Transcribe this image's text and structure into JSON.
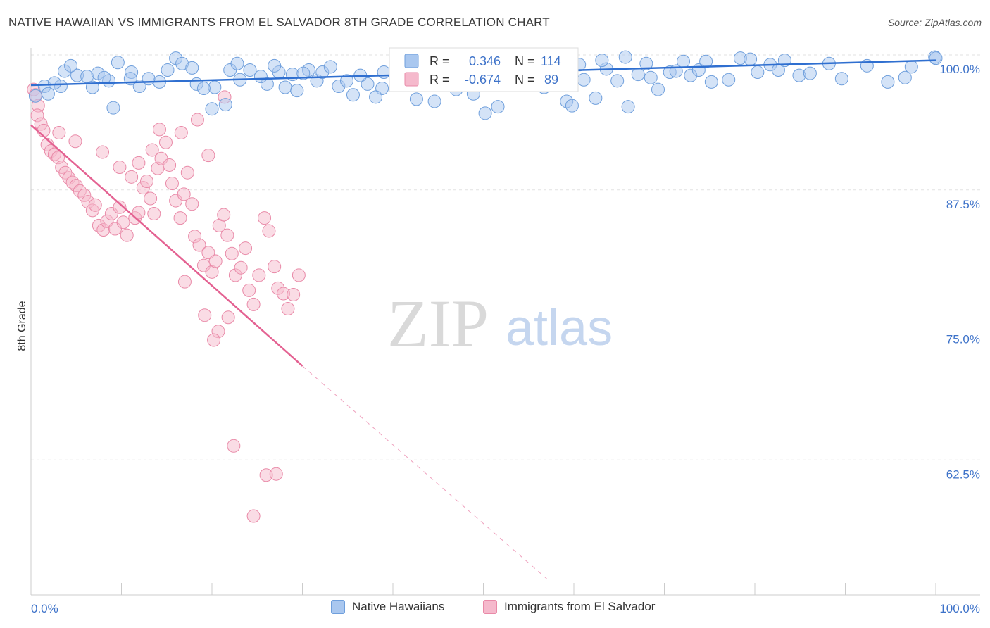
{
  "header": {
    "title": "NATIVE HAWAIIAN VS IMMIGRANTS FROM EL SALVADOR 8TH GRADE CORRELATION CHART",
    "source": "Source: ZipAtlas.com"
  },
  "watermark": {
    "zip": "ZIP",
    "atlas": "atlas"
  },
  "colors": {
    "blue_fill": "#a9c7ef",
    "blue_stroke": "#6f9fdc",
    "blue_line": "#2f6fd0",
    "pink_fill": "#f5b9cc",
    "pink_stroke": "#e98aa8",
    "pink_line": "#e46292",
    "label_blue": "#3d72c9"
  },
  "legend_box": {
    "rows": [
      {
        "r_label": "R =",
        "r_value": "0.346",
        "n_label": "N =",
        "n_value": "114"
      },
      {
        "r_label": "R =",
        "r_value": "-0.674",
        "n_label": "N =",
        "n_value": "89"
      }
    ]
  },
  "bottom_legend": {
    "series1": "Native Hawaiians",
    "series2": "Immigrants from El Salvador"
  },
  "chart_data": {
    "type": "scatter",
    "title": "NATIVE HAWAIIAN VS IMMIGRANTS FROM EL SALVADOR 8TH GRADE CORRELATION CHART",
    "xlabel": "",
    "ylabel": "8th Grade",
    "xlim": [
      0,
      100
    ],
    "ylim": [
      50,
      100
    ],
    "x_tick_labels": [
      "0.0%",
      "100.0%"
    ],
    "y_ticks": [
      {
        "value": 100,
        "label": "100.0%"
      },
      {
        "value": 87.5,
        "label": "87.5%"
      },
      {
        "value": 75,
        "label": "75.0%"
      },
      {
        "value": 62.5,
        "label": "62.5%"
      }
    ],
    "grid": true,
    "legend_position": "top-center",
    "series": [
      {
        "name": "Native Hawaiians",
        "R": 0.346,
        "N": 114,
        "trend": {
          "x": [
            0,
            100
          ],
          "y": [
            97.2,
            99.5
          ]
        },
        "points": [
          [
            0.5,
            96.2
          ],
          [
            1.5,
            97.1
          ],
          [
            1.9,
            96.4
          ],
          [
            3.7,
            98.5
          ],
          [
            5.1,
            98.1
          ],
          [
            3.3,
            97.1
          ],
          [
            6.8,
            97.0
          ],
          [
            6.2,
            98.0
          ],
          [
            8.6,
            97.6
          ],
          [
            7.4,
            98.3
          ],
          [
            8.1,
            97.9
          ],
          [
            11.1,
            98.4
          ],
          [
            12.0,
            97.1
          ],
          [
            9.1,
            95.1
          ],
          [
            14.2,
            97.5
          ],
          [
            15.1,
            98.6
          ],
          [
            16.0,
            99.7
          ],
          [
            11.0,
            97.8
          ],
          [
            18.3,
            97.3
          ],
          [
            16.7,
            99.2
          ],
          [
            17.8,
            98.8
          ],
          [
            20.0,
            95.0
          ],
          [
            20.3,
            97.0
          ],
          [
            21.5,
            95.4
          ],
          [
            22.0,
            98.6
          ],
          [
            23.1,
            97.7
          ],
          [
            24.2,
            98.6
          ],
          [
            26.1,
            97.3
          ],
          [
            25.4,
            98.0
          ],
          [
            27.4,
            98.4
          ],
          [
            28.1,
            97.0
          ],
          [
            28.9,
            98.2
          ],
          [
            30.7,
            98.6
          ],
          [
            30.1,
            98.3
          ],
          [
            31.6,
            97.6
          ],
          [
            32.2,
            98.4
          ],
          [
            34.0,
            97.1
          ],
          [
            35.6,
            96.3
          ],
          [
            34.9,
            97.6
          ],
          [
            37.2,
            97.3
          ],
          [
            38.8,
            96.9
          ],
          [
            39.0,
            98.4
          ],
          [
            40.4,
            97.4
          ],
          [
            41.8,
            98.1
          ],
          [
            42.6,
            95.9
          ],
          [
            43.1,
            97.4
          ],
          [
            44.6,
            95.7
          ],
          [
            45.4,
            98.7
          ],
          [
            46.5,
            97.6
          ],
          [
            47.0,
            96.8
          ],
          [
            48.9,
            96.4
          ],
          [
            49.8,
            97.2
          ],
          [
            50.2,
            94.6
          ],
          [
            51.6,
            95.2
          ],
          [
            53.5,
            97.7
          ],
          [
            54.1,
            98.9
          ],
          [
            55.3,
            98.8
          ],
          [
            56.7,
            97.0
          ],
          [
            57.9,
            98.4
          ],
          [
            59.2,
            95.7
          ],
          [
            59.8,
            95.3
          ],
          [
            61.1,
            97.7
          ],
          [
            62.4,
            96.0
          ],
          [
            63.6,
            98.7
          ],
          [
            64.8,
            97.6
          ],
          [
            66.0,
            95.2
          ],
          [
            67.1,
            98.2
          ],
          [
            68.5,
            97.9
          ],
          [
            69.3,
            96.8
          ],
          [
            70.6,
            98.4
          ],
          [
            71.3,
            98.5
          ],
          [
            72.9,
            98.1
          ],
          [
            73.8,
            98.6
          ],
          [
            75.2,
            97.5
          ],
          [
            77.1,
            97.7
          ],
          [
            78.4,
            99.7
          ],
          [
            80.3,
            98.4
          ],
          [
            81.7,
            99.1
          ],
          [
            82.6,
            98.6
          ],
          [
            84.9,
            98.1
          ],
          [
            86.1,
            98.3
          ],
          [
            88.2,
            99.2
          ],
          [
            89.6,
            97.8
          ],
          [
            92.4,
            99.0
          ],
          [
            94.7,
            97.5
          ],
          [
            96.6,
            97.9
          ],
          [
            97.3,
            98.9
          ],
          [
            99.9,
            99.8
          ],
          [
            100.0,
            99.7
          ],
          [
            2.6,
            97.4
          ],
          [
            4.4,
            99.0
          ],
          [
            9.6,
            99.3
          ],
          [
            13.0,
            97.8
          ],
          [
            19.1,
            96.9
          ],
          [
            22.8,
            99.2
          ],
          [
            26.9,
            99.0
          ],
          [
            29.4,
            96.7
          ],
          [
            33.1,
            98.9
          ],
          [
            36.4,
            98.1
          ],
          [
            38.1,
            96.1
          ],
          [
            40.9,
            99.1
          ],
          [
            44.0,
            97.9
          ],
          [
            47.8,
            99.1
          ],
          [
            52.3,
            97.9
          ],
          [
            56.0,
            99.6
          ],
          [
            58.5,
            99.2
          ],
          [
            60.6,
            99.1
          ],
          [
            63.1,
            99.5
          ],
          [
            65.7,
            99.8
          ],
          [
            68.0,
            99.2
          ],
          [
            72.1,
            99.4
          ],
          [
            74.6,
            99.4
          ],
          [
            79.5,
            99.6
          ],
          [
            83.3,
            99.5
          ]
        ]
      },
      {
        "name": "Immigrants from El Salvador",
        "R": -0.674,
        "N": 89,
        "trend": {
          "x": [
            0,
            30
          ],
          "y": [
            93.5,
            71.2
          ]
        },
        "trend_dashed": {
          "x": [
            30,
            57
          ],
          "y": [
            71.2,
            51.5
          ]
        },
        "points": [
          [
            0.3,
            96.8
          ],
          [
            0.5,
            96.3
          ],
          [
            0.8,
            95.3
          ],
          [
            0.7,
            94.4
          ],
          [
            1.1,
            93.6
          ],
          [
            1.4,
            93.0
          ],
          [
            1.8,
            91.7
          ],
          [
            2.2,
            91.1
          ],
          [
            2.6,
            90.8
          ],
          [
            3.0,
            90.5
          ],
          [
            3.4,
            89.6
          ],
          [
            3.8,
            89.1
          ],
          [
            4.2,
            88.6
          ],
          [
            4.6,
            88.2
          ],
          [
            5.0,
            87.9
          ],
          [
            5.4,
            87.4
          ],
          [
            5.9,
            87.0
          ],
          [
            6.3,
            86.4
          ],
          [
            6.8,
            85.6
          ],
          [
            7.1,
            86.1
          ],
          [
            7.5,
            84.2
          ],
          [
            8.0,
            83.8
          ],
          [
            8.4,
            84.6
          ],
          [
            8.9,
            85.3
          ],
          [
            9.3,
            83.9
          ],
          [
            9.8,
            85.9
          ],
          [
            10.2,
            84.5
          ],
          [
            10.6,
            83.3
          ],
          [
            11.1,
            88.7
          ],
          [
            11.5,
            84.9
          ],
          [
            11.9,
            85.4
          ],
          [
            12.4,
            87.7
          ],
          [
            12.8,
            88.3
          ],
          [
            13.2,
            86.7
          ],
          [
            13.6,
            85.3
          ],
          [
            14.0,
            89.5
          ],
          [
            14.4,
            90.4
          ],
          [
            14.9,
            91.9
          ],
          [
            15.3,
            89.8
          ],
          [
            15.6,
            88.1
          ],
          [
            16.0,
            86.5
          ],
          [
            16.5,
            84.9
          ],
          [
            16.9,
            87.1
          ],
          [
            17.3,
            89.1
          ],
          [
            17.8,
            86.2
          ],
          [
            18.1,
            83.2
          ],
          [
            18.6,
            82.4
          ],
          [
            19.1,
            80.5
          ],
          [
            19.6,
            81.7
          ],
          [
            20.0,
            79.9
          ],
          [
            20.4,
            80.9
          ],
          [
            20.8,
            84.2
          ],
          [
            21.3,
            85.2
          ],
          [
            21.7,
            83.3
          ],
          [
            22.2,
            81.6
          ],
          [
            22.6,
            79.6
          ],
          [
            23.2,
            80.3
          ],
          [
            23.7,
            82.1
          ],
          [
            24.1,
            78.2
          ],
          [
            24.6,
            76.9
          ],
          [
            25.2,
            79.6
          ],
          [
            25.8,
            84.9
          ],
          [
            26.3,
            83.7
          ],
          [
            26.9,
            80.4
          ],
          [
            27.3,
            78.4
          ],
          [
            27.9,
            77.9
          ],
          [
            28.4,
            76.5
          ],
          [
            29.0,
            77.8
          ],
          [
            29.6,
            79.6
          ],
          [
            11.9,
            90.0
          ],
          [
            13.4,
            91.2
          ],
          [
            7.9,
            91.0
          ],
          [
            9.8,
            89.6
          ],
          [
            4.9,
            92.0
          ],
          [
            3.1,
            92.8
          ],
          [
            16.6,
            92.8
          ],
          [
            14.2,
            93.1
          ],
          [
            18.4,
            94.0
          ],
          [
            21.4,
            96.1
          ],
          [
            19.6,
            90.7
          ],
          [
            17.0,
            79.0
          ],
          [
            19.2,
            75.9
          ],
          [
            21.8,
            75.7
          ],
          [
            20.7,
            74.4
          ],
          [
            20.2,
            73.6
          ],
          [
            22.4,
            63.8
          ],
          [
            26.0,
            61.1
          ],
          [
            27.1,
            61.2
          ],
          [
            24.6,
            57.3
          ]
        ]
      }
    ]
  }
}
